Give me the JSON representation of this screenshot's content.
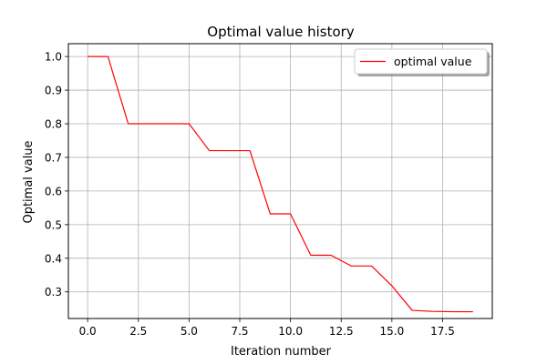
{
  "chart_data": {
    "type": "line",
    "title": "Optimal value history",
    "xlabel": "Iteration number",
    "ylabel": "Optimal value",
    "xlim": [
      -0.95,
      19.95
    ],
    "ylim": [
      0.2208,
      1.0382
    ],
    "xticks": [
      0.0,
      2.5,
      5.0,
      7.5,
      10.0,
      12.5,
      15.0,
      17.5
    ],
    "xtick_labels": [
      "0.0",
      "2.5",
      "5.0",
      "7.5",
      "10.0",
      "12.5",
      "15.0",
      "17.5"
    ],
    "yticks": [
      0.3,
      0.4,
      0.5,
      0.6,
      0.7,
      0.8,
      0.9,
      1.0
    ],
    "ytick_labels": [
      "0.3",
      "0.4",
      "0.5",
      "0.6",
      "0.7",
      "0.8",
      "0.9",
      "1.0"
    ],
    "grid": true,
    "legend_position": "top-right",
    "series": [
      {
        "name": "optimal value",
        "color": "#ff0000",
        "x": [
          0,
          1,
          2,
          3,
          4,
          5,
          6,
          7,
          8,
          9,
          10,
          11,
          12,
          13,
          14,
          15,
          16,
          17,
          18,
          19
        ],
        "y": [
          1.0,
          1.0,
          0.8,
          0.8,
          0.8,
          0.8,
          0.72,
          0.72,
          0.72,
          0.532,
          0.532,
          0.409,
          0.409,
          0.377,
          0.377,
          0.318,
          0.245,
          0.242,
          0.241,
          0.241
        ]
      }
    ]
  }
}
